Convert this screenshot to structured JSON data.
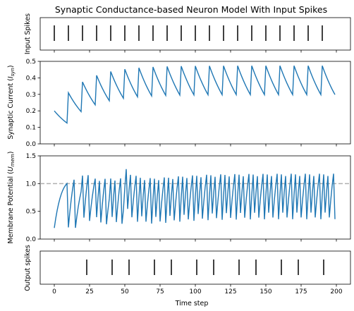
{
  "chart_data": [
    {
      "panel": "input_spikes",
      "type": "scatter",
      "title": "Synaptic Conductance-based Neuron Model With Input Spikes",
      "ylabel": "Input Spikes",
      "xlim": [
        -10,
        210
      ],
      "spike_times": [
        0,
        10,
        20,
        30,
        40,
        50,
        60,
        70,
        80,
        90,
        100,
        110,
        120,
        130,
        140,
        150,
        160,
        170,
        180,
        190
      ]
    },
    {
      "panel": "synaptic_current",
      "type": "line",
      "ylabel": "Synaptic Current (I_syn)",
      "ylabel_main": "Synaptic Current (",
      "ylabel_sym": "I",
      "ylabel_sub": "syn",
      "ylabel_end": ")",
      "ylim": [
        0,
        0.5
      ],
      "yticks": [
        "0.0",
        "0.1",
        "0.2",
        "0.3",
        "0.4",
        "0.5"
      ],
      "x_start": 0,
      "x_end": 199,
      "initial_value": 0.2,
      "decay_per_step": 0.95,
      "input_times": [
        10,
        20,
        30,
        40,
        50,
        60,
        70,
        80,
        90,
        100,
        110,
        120,
        130,
        140,
        150,
        160,
        170,
        180,
        190
      ],
      "input_weight": 0.19,
      "color": "#1f77b4"
    },
    {
      "panel": "membrane_potential",
      "type": "line",
      "ylabel": "Membrane Potential (U_mem)",
      "ylabel_main": "Membrane Potential (",
      "ylabel_sym": "U",
      "ylabel_sub": "mem",
      "ylabel_end": ")",
      "ylim": [
        0,
        1.5
      ],
      "yticks": [
        "0.0",
        "0.5",
        "1.0",
        "1.5"
      ],
      "threshold": 1.0,
      "threshold_color": "#b0b0b0",
      "x_start": 0,
      "x_end": 199,
      "initial_value": 0.2,
      "membrane_decay": 0.9,
      "color": "#1f77b4"
    },
    {
      "panel": "output_spikes",
      "type": "scatter",
      "ylabel": "Output spikes",
      "xlabel": "Time step",
      "xlim": [
        -10,
        210
      ],
      "xticks": [
        0,
        25,
        50,
        75,
        100,
        125,
        150,
        175,
        200
      ],
      "spike_times": [
        23,
        41,
        53,
        71,
        83,
        101,
        113,
        131,
        143,
        161,
        173,
        191
      ]
    }
  ]
}
